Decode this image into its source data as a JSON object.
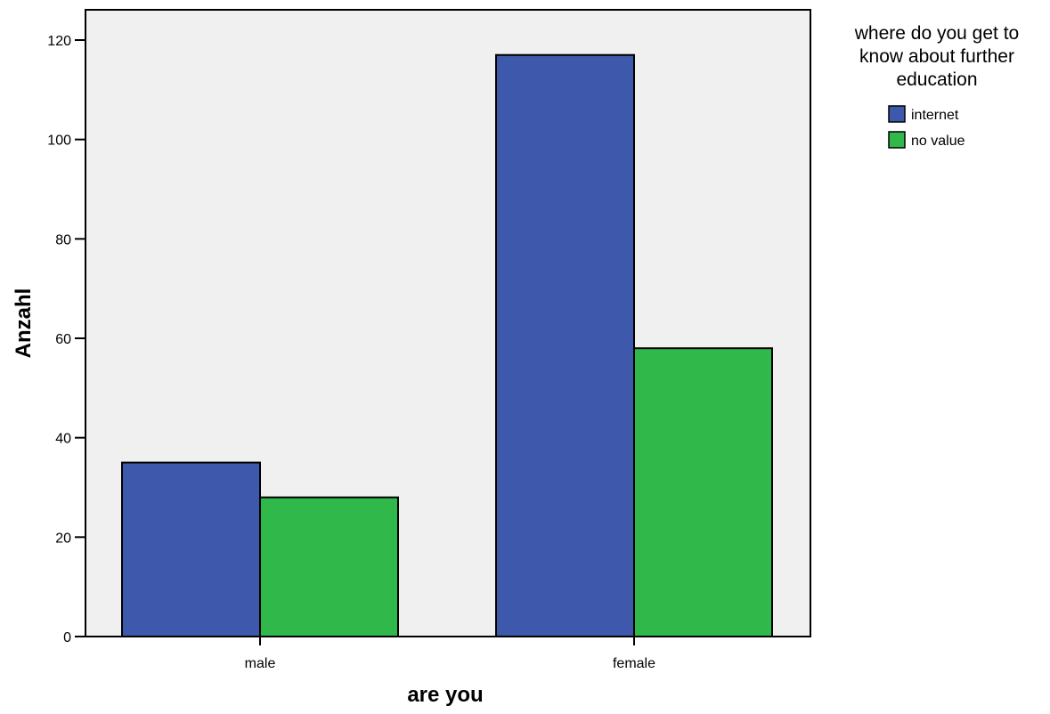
{
  "chart_data": {
    "type": "bar",
    "categories": [
      "male",
      "female"
    ],
    "series": [
      {
        "name": "internet",
        "values": [
          35,
          117
        ],
        "color": "#3e58ab"
      },
      {
        "name": "no value",
        "values": [
          28,
          58
        ],
        "color": "#30b84a"
      }
    ],
    "xlabel": "are you",
    "ylabel": "Anzahl",
    "ylim": [
      0,
      120
    ],
    "yticks": [
      0,
      20,
      40,
      60,
      80,
      100,
      120
    ],
    "legend": {
      "title_lines": [
        "where do you get to",
        "know about further",
        "education"
      ],
      "placement": "right"
    },
    "grid": false,
    "plot_background": "#f0f0f0"
  }
}
